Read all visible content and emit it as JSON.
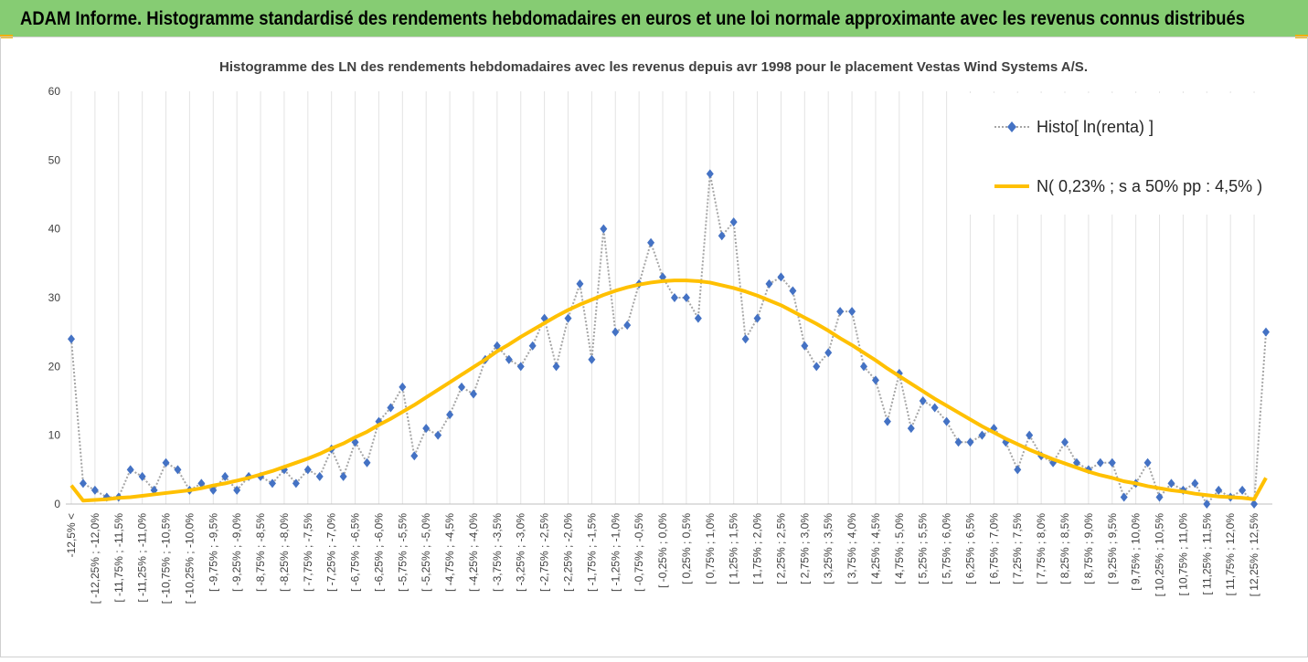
{
  "banner": {
    "title": "ADAM Informe. Histogramme standardisé des rendements hebdomadaires en euros et une loi normale approximante avec les revenus connus distribués"
  },
  "chart_data": {
    "type": "line",
    "title": "Histogramme des LN des rendements hebdomadaires avec les revenus depuis avr 1998 pour le placement Vestas Wind Systems A/S.",
    "categories": [
      "-12,5% <",
      null,
      "[ -12,25% ; -12,0%",
      null,
      "[ -11,75% ; -11,5%",
      null,
      "[ -11,25% ; -11,0%",
      null,
      "[ -10,75% ; -10,5%",
      null,
      "[ -10,25% ; -10,0%",
      null,
      "[ -9,75% ; -9,5%",
      null,
      "[ -9,25% ; -9,0%",
      null,
      "[ -8,75% ; -8,5%",
      null,
      "[ -8,25% ; -8,0%",
      null,
      "[ -7,75% ; -7,5%",
      null,
      "[ -7,25% ; -7,0%",
      null,
      "[ -6,75% ; -6,5%",
      null,
      "[ -6,25% ; -6,0%",
      null,
      "[ -5,75% ; -5,5%",
      null,
      "[ -5,25% ; -5,0%",
      null,
      "[ -4,75% ; -4,5%",
      null,
      "[ -4,25% ; -4,0%",
      null,
      "[ -3,75% ; -3,5%",
      null,
      "[ -3,25% ; -3,0%",
      null,
      "[ -2,75% ; -2,5%",
      null,
      "[ -2,25% ; -2,0%",
      null,
      "[ -1,75% ; -1,5%",
      null,
      "[ -1,25% ; -1,0%",
      null,
      "[ -0,75% ; -0,5%",
      null,
      "[ -0,25% ; 0,0%",
      null,
      "[ 0,25% ; 0,5%",
      null,
      "[ 0,75% ; 1,0%",
      null,
      "[ 1,25% ; 1,5%",
      null,
      "[ 1,75% ; 2,0%",
      null,
      "[ 2,25% ; 2,5%",
      null,
      "[ 2,75% ; 3,0%",
      null,
      "[ 3,25% ; 3,5%",
      null,
      "[ 3,75% ; 4,0%",
      null,
      "[ 4,25% ; 4,5%",
      null,
      "[ 4,75% ; 5,0%",
      null,
      "[ 5,25% ; 5,5%",
      null,
      "[ 5,75% ; 6,0%",
      null,
      "[ 6,25% ; 6,5%",
      null,
      "[ 6,75% ; 7,0%",
      null,
      "[ 7,25% ; 7,5%",
      null,
      "[ 7,75% ; 8,0%",
      null,
      "[ 8,25% ; 8,5%",
      null,
      "[ 8,75% ; 9,0%",
      null,
      "[ 9,25% ; 9,5%",
      null,
      "[ 9,75% ; 10,0%",
      null,
      "[ 10,25% ; 10,5%",
      null,
      "[ 10,75% ; 11,0%",
      null,
      "[ 11,25% ; 11,5%",
      null,
      "[ 11,75% ; 12,0%",
      null,
      "[ 12,25% ; 12,5%",
      null
    ],
    "series": [
      {
        "name": "Histo[ ln(renta) ]",
        "color": "#4472c4",
        "line_color": "#a6a6a6",
        "marker": "diamond",
        "line_style": "dotted",
        "values": [
          24,
          3,
          2,
          1,
          1,
          5,
          4,
          2,
          6,
          5,
          2,
          3,
          2,
          4,
          2,
          4,
          4,
          3,
          5,
          3,
          5,
          4,
          8,
          4,
          9,
          6,
          12,
          14,
          17,
          7,
          11,
          10,
          13,
          17,
          16,
          21,
          23,
          21,
          20,
          23,
          27,
          20,
          27,
          32,
          21,
          40,
          25,
          26,
          32,
          38,
          33,
          30,
          30,
          27,
          48,
          39,
          41,
          24,
          27,
          32,
          33,
          31,
          23,
          20,
          22,
          28,
          28,
          20,
          18,
          12,
          19,
          11,
          15,
          14,
          12,
          9,
          9,
          10,
          11,
          9,
          5,
          10,
          7,
          6,
          9,
          6,
          5,
          6,
          6,
          1,
          3,
          6,
          1,
          3,
          2,
          3,
          0,
          2,
          1,
          2,
          0,
          25
        ]
      },
      {
        "name": "N( 0,23% ; s a 50% pp : 4,5% )",
        "color": "#ffc000",
        "marker": "none",
        "line_style": "solid",
        "values": [
          2.7,
          0.5,
          0.6,
          0.7,
          0.9,
          1.0,
          1.2,
          1.4,
          1.6,
          1.8,
          2.0,
          2.3,
          2.7,
          3.0,
          3.4,
          3.8,
          4.3,
          4.8,
          5.4,
          6.0,
          6.6,
          7.3,
          8.1,
          8.8,
          9.7,
          10.5,
          11.5,
          12.4,
          13.4,
          14.4,
          15.5,
          16.6,
          17.7,
          18.8,
          19.9,
          21.0,
          22.2,
          23.2,
          24.3,
          25.3,
          26.3,
          27.3,
          28.2,
          29.0,
          29.7,
          30.4,
          31.0,
          31.5,
          31.9,
          32.2,
          32.4,
          32.5,
          32.5,
          32.4,
          32.2,
          31.8,
          31.4,
          30.9,
          30.3,
          29.6,
          28.9,
          28.0,
          27.1,
          26.2,
          25.2,
          24.1,
          23.1,
          22.0,
          20.9,
          19.7,
          18.6,
          17.5,
          16.4,
          15.3,
          14.3,
          13.3,
          12.3,
          11.3,
          10.4,
          9.5,
          8.7,
          7.9,
          7.2,
          6.5,
          5.9,
          5.3,
          4.7,
          4.2,
          3.8,
          3.3,
          3.0,
          2.6,
          2.3,
          2.0,
          1.8,
          1.5,
          1.3,
          1.1,
          1.0,
          0.9,
          0.7,
          3.8
        ]
      }
    ],
    "ylim": [
      0,
      60
    ],
    "yticks": [
      0,
      10,
      20,
      30,
      40,
      50,
      60
    ],
    "xgrid": true,
    "ygrid": false,
    "legend": "top-right"
  }
}
